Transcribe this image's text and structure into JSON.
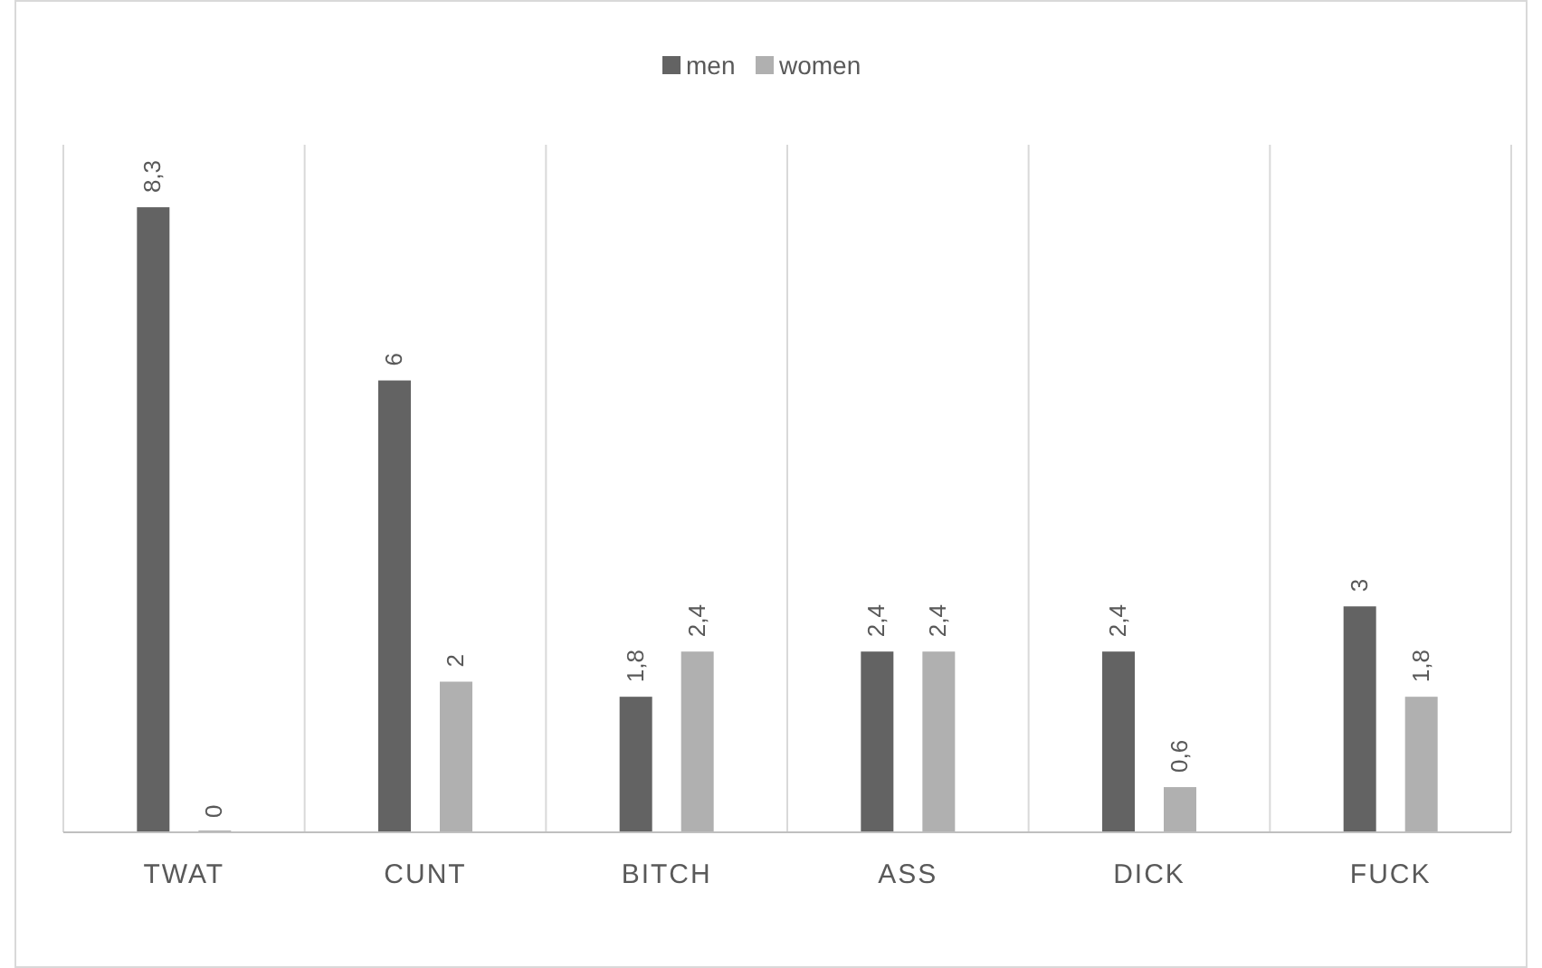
{
  "chart_data": {
    "type": "bar",
    "categories": [
      "TWAT",
      "CUNT",
      "BITCH",
      "ASS",
      "DICK",
      "FUCK"
    ],
    "series": [
      {
        "name": "men",
        "color": "#636363",
        "values": [
          8.3,
          6,
          1.8,
          2.4,
          2.4,
          3
        ],
        "value_labels": [
          "8,3",
          "6",
          "1,8",
          "2,4",
          "2,4",
          "3"
        ]
      },
      {
        "name": "women",
        "color": "#b0b0b0",
        "values": [
          0,
          2,
          2.4,
          2.4,
          0.6,
          1.8
        ],
        "value_labels": [
          "0",
          "2",
          "2,4",
          "2,4",
          "0,6",
          "1,8"
        ]
      }
    ],
    "grid": "x",
    "legend": "top"
  }
}
